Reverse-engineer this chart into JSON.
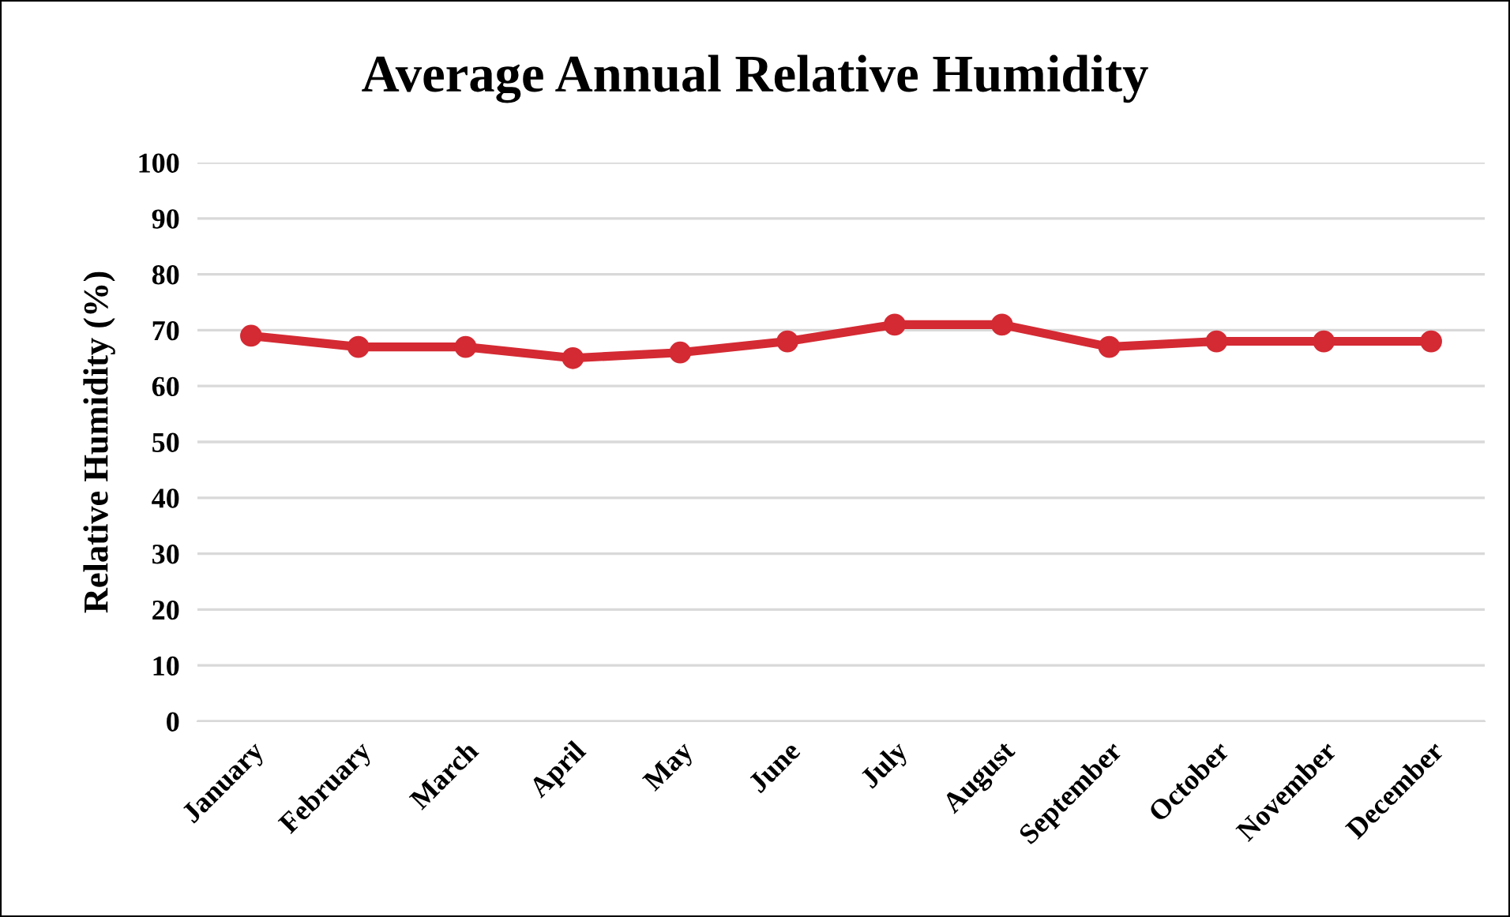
{
  "chart_data": {
    "type": "line",
    "title": "Average Annual Relative Humidity",
    "ylabel": "Relative Humidity (%)",
    "categories": [
      "January",
      "February",
      "March",
      "April",
      "May",
      "June",
      "July",
      "August",
      "September",
      "October",
      "November",
      "December"
    ],
    "series": [
      {
        "color": "#d42a33",
        "values": [
          69,
          67,
          67,
          65,
          66,
          68,
          71,
          71,
          67,
          68,
          68,
          68
        ]
      }
    ],
    "ylim": [
      0,
      100
    ],
    "yticks": [
      0,
      10,
      20,
      30,
      40,
      50,
      60,
      70,
      80,
      90,
      100
    ],
    "grid": "y",
    "marker": "circle",
    "line_style": "solid"
  }
}
